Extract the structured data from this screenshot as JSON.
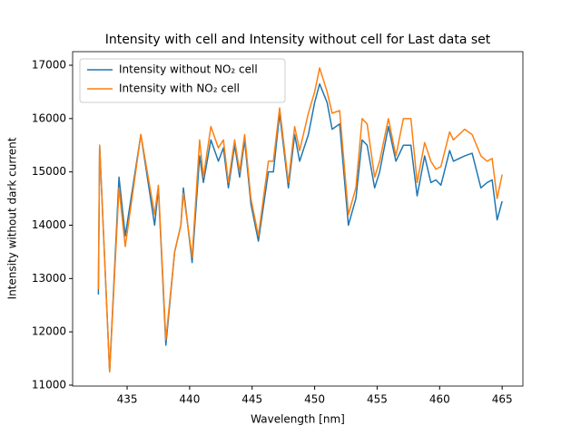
{
  "chart_data": {
    "type": "line",
    "title": "Intensity with cell and Intensity without cell for Last data set",
    "x_label": "Wavelength [nm]",
    "y_label": "Intensity without dark current",
    "x": [
      432.7,
      432.8,
      433.6,
      434.35,
      434.85,
      436.1,
      437.2,
      437.5,
      438.1,
      438.8,
      439.3,
      439.5,
      440.2,
      440.8,
      441.1,
      441.7,
      442.3,
      442.7,
      443.1,
      443.6,
      444.0,
      444.4,
      444.9,
      445.5,
      446.3,
      446.7,
      447.2,
      447.9,
      448.4,
      448.8,
      449.5,
      450.0,
      450.4,
      451.0,
      451.4,
      452.0,
      452.7,
      453.3,
      453.8,
      454.2,
      454.8,
      455.2,
      455.9,
      456.5,
      457.1,
      457.7,
      458.2,
      458.8,
      459.3,
      459.7,
      460.1,
      460.8,
      461.1,
      462.0,
      462.6,
      463.3,
      463.8,
      464.2,
      464.6,
      465.0
    ],
    "series": [
      {
        "name": "Intensity without NO₂ cell",
        "color": "#1f77b4",
        "values": [
          12700,
          15500,
          11250,
          14900,
          13800,
          15700,
          14000,
          14700,
          11750,
          13500,
          14000,
          14700,
          13300,
          15300,
          14800,
          15600,
          15200,
          15450,
          14700,
          15500,
          14900,
          15600,
          14400,
          13700,
          15000,
          15000,
          16100,
          14700,
          15700,
          15200,
          15700,
          16300,
          16650,
          16300,
          15800,
          15900,
          14000,
          14500,
          15600,
          15500,
          14700,
          15000,
          15850,
          15200,
          15500,
          15500,
          14550,
          15300,
          14800,
          14850,
          14750,
          15400,
          15200,
          15300,
          15350,
          14700,
          14800,
          14850,
          14100,
          14450
        ]
      },
      {
        "name": "Intensity with NO₂ cell",
        "color": "#ff7f0e",
        "values": [
          12800,
          15500,
          11250,
          14700,
          13600,
          15700,
          14200,
          14750,
          11850,
          13500,
          14000,
          14600,
          13400,
          15600,
          14900,
          15850,
          15450,
          15600,
          14800,
          15600,
          15000,
          15700,
          14500,
          13800,
          15200,
          15200,
          16200,
          14800,
          15850,
          15400,
          16100,
          16500,
          16950,
          16500,
          16100,
          16150,
          14200,
          14700,
          16000,
          15900,
          14900,
          15200,
          16000,
          15300,
          16000,
          16000,
          14800,
          15550,
          15200,
          15050,
          15100,
          15750,
          15600,
          15800,
          15700,
          15300,
          15200,
          15250,
          14500,
          14950
        ]
      }
    ],
    "xlim": [
      430.64,
      466.66
    ],
    "ylim": [
      10983,
      17255
    ],
    "xticks": [
      435,
      440,
      445,
      450,
      455,
      460,
      465
    ],
    "yticks": [
      11000,
      12000,
      13000,
      14000,
      15000,
      16000,
      17000
    ],
    "legend_position": "upper left",
    "grid": false
  }
}
